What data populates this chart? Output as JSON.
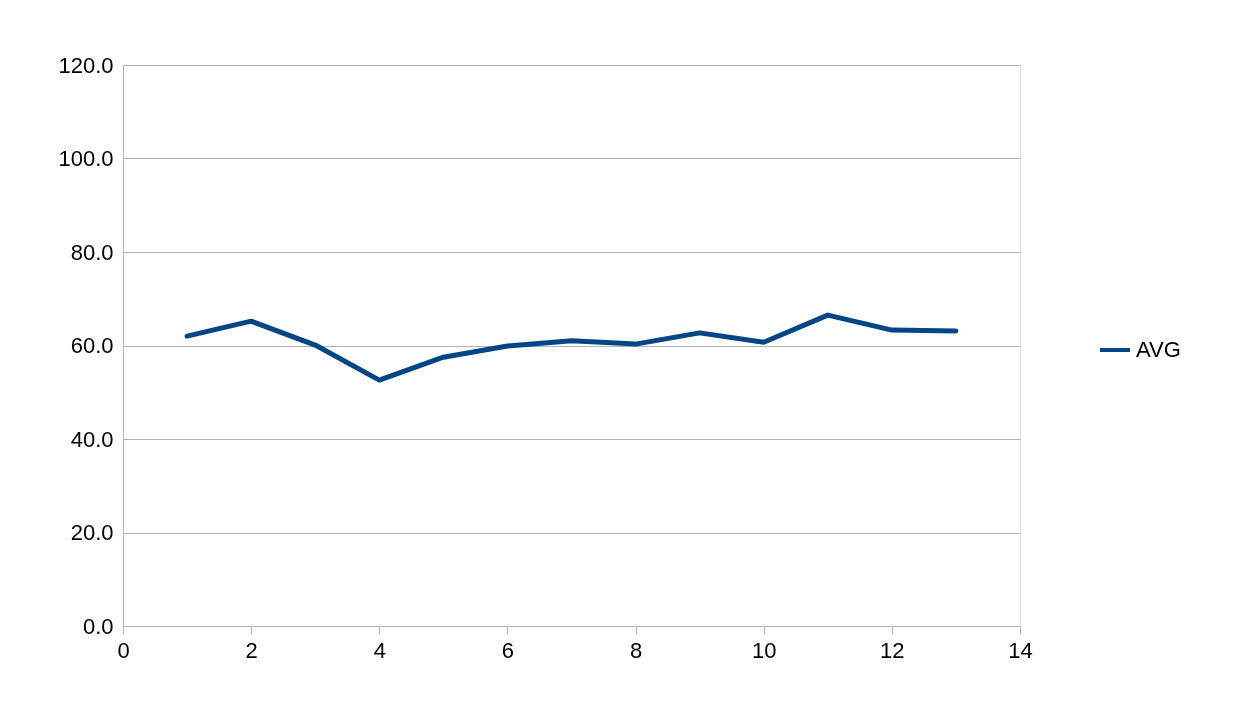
{
  "chart_data": {
    "type": "line",
    "x": [
      1,
      2,
      3,
      4,
      5,
      6,
      7,
      8,
      9,
      10,
      11,
      12,
      13
    ],
    "series": [
      {
        "name": "AVG",
        "color": "#004586",
        "values": [
          62.0,
          65.2,
          60.1,
          52.6,
          57.5,
          59.9,
          61.0,
          60.3,
          62.7,
          60.7,
          66.5,
          63.3,
          63.1
        ]
      }
    ],
    "xlim": [
      0,
      14
    ],
    "xticks": [
      0,
      2,
      4,
      6,
      8,
      10,
      12,
      14
    ],
    "ylim": [
      0,
      120
    ],
    "yticks": [
      {
        "value": 0,
        "label": "0.0"
      },
      {
        "value": 20,
        "label": "20.0"
      },
      {
        "value": 40,
        "label": "40.0"
      },
      {
        "value": 60,
        "label": "60.0"
      },
      {
        "value": 80,
        "label": "80.0"
      },
      {
        "value": 100,
        "label": "100.0"
      },
      {
        "value": 120,
        "label": "120.0"
      }
    ],
    "grid": "y",
    "legend": "right",
    "marker": "none",
    "line_style": "solid"
  }
}
